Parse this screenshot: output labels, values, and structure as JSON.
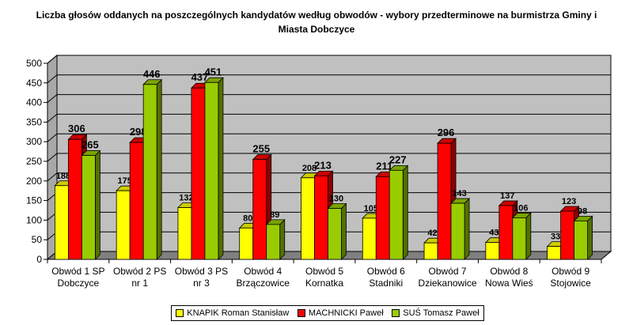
{
  "chart_data": {
    "type": "bar",
    "title": "Liczba głosów oddanych na poszczególnych kandydatów według obwodów - wybory przedterminowe na burmistrza Gminy i Miasta Dobczyce",
    "categories": [
      [
        "Obwód 1 SP",
        "Dobczyce"
      ],
      [
        "Obwód 2 PS",
        "nr 1"
      ],
      [
        "Obwód 3 PS",
        "nr 3"
      ],
      [
        "Obwód 4",
        "Brzączowice"
      ],
      [
        "Obwód 5",
        "Kornatka"
      ],
      [
        "Obwód 6",
        "Stadniki"
      ],
      [
        "Obwód 7",
        "Dziekanowice"
      ],
      [
        "Obwód 8",
        "Nowa Wieś"
      ],
      [
        "Obwód 9",
        "Stojowice"
      ]
    ],
    "series": [
      {
        "name": "KNAPIK Roman Stanisław",
        "color": "#FFFF00",
        "values": [
          188,
          175,
          132,
          80,
          208,
          105,
          42,
          43,
          33
        ]
      },
      {
        "name": "MACHNICKI Paweł",
        "color": "#FF0000",
        "values": [
          306,
          298,
          437,
          255,
          213,
          211,
          296,
          137,
          123
        ]
      },
      {
        "name": "SUŚ Tomasz Paweł",
        "color": "#99CC00",
        "values": [
          265,
          446,
          451,
          89,
          130,
          227,
          143,
          106,
          98
        ]
      }
    ],
    "yticks": [
      0,
      50,
      100,
      150,
      200,
      250,
      300,
      350,
      400,
      450,
      500
    ],
    "ylim": [
      0,
      500
    ],
    "grid": true,
    "legend_position": "bottom",
    "wall_color": "#C0C0C0",
    "floor_color": "#808080"
  }
}
